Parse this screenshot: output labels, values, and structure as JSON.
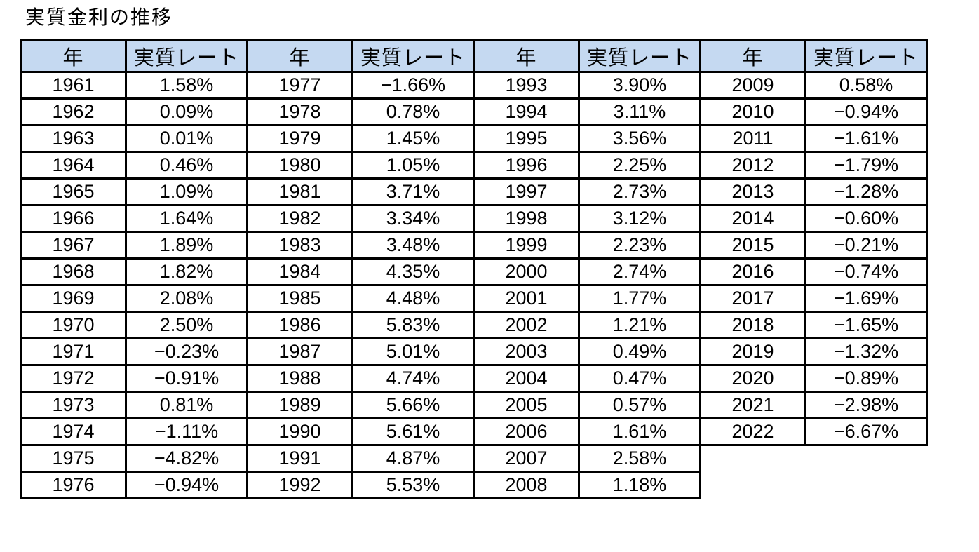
{
  "title": "実質金利の推移",
  "colors": {
    "header_bg": "#c5d9f1",
    "grid_border": "#000000",
    "text": "#000000",
    "page_bg": "#ffffff"
  },
  "table": {
    "header_labels": {
      "year": "年",
      "rate": "実質レート"
    },
    "num_pairs": 4,
    "rows": [
      [
        "1961",
        "1.58%",
        "1977",
        "−1.66%",
        "1993",
        "3.90%",
        "2009",
        "0.58%"
      ],
      [
        "1962",
        "0.09%",
        "1978",
        "0.78%",
        "1994",
        "3.11%",
        "2010",
        "−0.94%"
      ],
      [
        "1963",
        "0.01%",
        "1979",
        "1.45%",
        "1995",
        "3.56%",
        "2011",
        "−1.61%"
      ],
      [
        "1964",
        "0.46%",
        "1980",
        "1.05%",
        "1996",
        "2.25%",
        "2012",
        "−1.79%"
      ],
      [
        "1965",
        "1.09%",
        "1981",
        "3.71%",
        "1997",
        "2.73%",
        "2013",
        "−1.28%"
      ],
      [
        "1966",
        "1.64%",
        "1982",
        "3.34%",
        "1998",
        "3.12%",
        "2014",
        "−0.60%"
      ],
      [
        "1967",
        "1.89%",
        "1983",
        "3.48%",
        "1999",
        "2.23%",
        "2015",
        "−0.21%"
      ],
      [
        "1968",
        "1.82%",
        "1984",
        "4.35%",
        "2000",
        "2.74%",
        "2016",
        "−0.74%"
      ],
      [
        "1969",
        "2.08%",
        "1985",
        "4.48%",
        "2001",
        "1.77%",
        "2017",
        "−1.69%"
      ],
      [
        "1970",
        "2.50%",
        "1986",
        "5.83%",
        "2002",
        "1.21%",
        "2018",
        "−1.65%"
      ],
      [
        "1971",
        "−0.23%",
        "1987",
        "5.01%",
        "2003",
        "0.49%",
        "2019",
        "−1.32%"
      ],
      [
        "1972",
        "−0.91%",
        "1988",
        "4.74%",
        "2004",
        "0.47%",
        "2020",
        "−0.89%"
      ],
      [
        "1973",
        "0.81%",
        "1989",
        "5.66%",
        "2005",
        "0.57%",
        "2021",
        "−2.98%"
      ],
      [
        "1974",
        "−1.11%",
        "1990",
        "5.61%",
        "2006",
        "1.61%",
        "2022",
        "−6.67%"
      ],
      [
        "1975",
        "−4.82%",
        "1991",
        "4.87%",
        "2007",
        "2.58%",
        null,
        null
      ],
      [
        "1976",
        "−0.94%",
        "1992",
        "5.53%",
        "2008",
        "1.18%",
        null,
        null
      ]
    ]
  },
  "chart_data": {
    "type": "table",
    "title": "実質金利の推移",
    "column_headers": [
      "年",
      "実質レート"
    ],
    "years": [
      1961,
      1962,
      1963,
      1964,
      1965,
      1966,
      1967,
      1968,
      1969,
      1970,
      1971,
      1972,
      1973,
      1974,
      1975,
      1976,
      1977,
      1978,
      1979,
      1980,
      1981,
      1982,
      1983,
      1984,
      1985,
      1986,
      1987,
      1988,
      1989,
      1990,
      1991,
      1992,
      1993,
      1994,
      1995,
      1996,
      1997,
      1998,
      1999,
      2000,
      2001,
      2002,
      2003,
      2004,
      2005,
      2006,
      2007,
      2008,
      2009,
      2010,
      2011,
      2012,
      2013,
      2014,
      2015,
      2016,
      2017,
      2018,
      2019,
      2020,
      2021,
      2022
    ],
    "real_rate_percent": [
      1.58,
      0.09,
      0.01,
      0.46,
      1.09,
      1.64,
      1.89,
      1.82,
      2.08,
      2.5,
      -0.23,
      -0.91,
      0.81,
      -1.11,
      -4.82,
      -0.94,
      -1.66,
      0.78,
      1.45,
      1.05,
      3.71,
      3.34,
      3.48,
      4.35,
      4.48,
      5.83,
      5.01,
      4.74,
      5.66,
      5.61,
      4.87,
      5.53,
      3.9,
      3.11,
      3.56,
      2.25,
      2.73,
      3.12,
      2.23,
      2.74,
      1.77,
      1.21,
      0.49,
      0.47,
      0.57,
      1.61,
      2.58,
      1.18,
      0.58,
      -0.94,
      -1.61,
      -1.79,
      -1.28,
      -0.6,
      -0.21,
      -0.74,
      -1.69,
      -1.65,
      -1.32,
      -0.89,
      -2.98,
      -6.67
    ]
  }
}
